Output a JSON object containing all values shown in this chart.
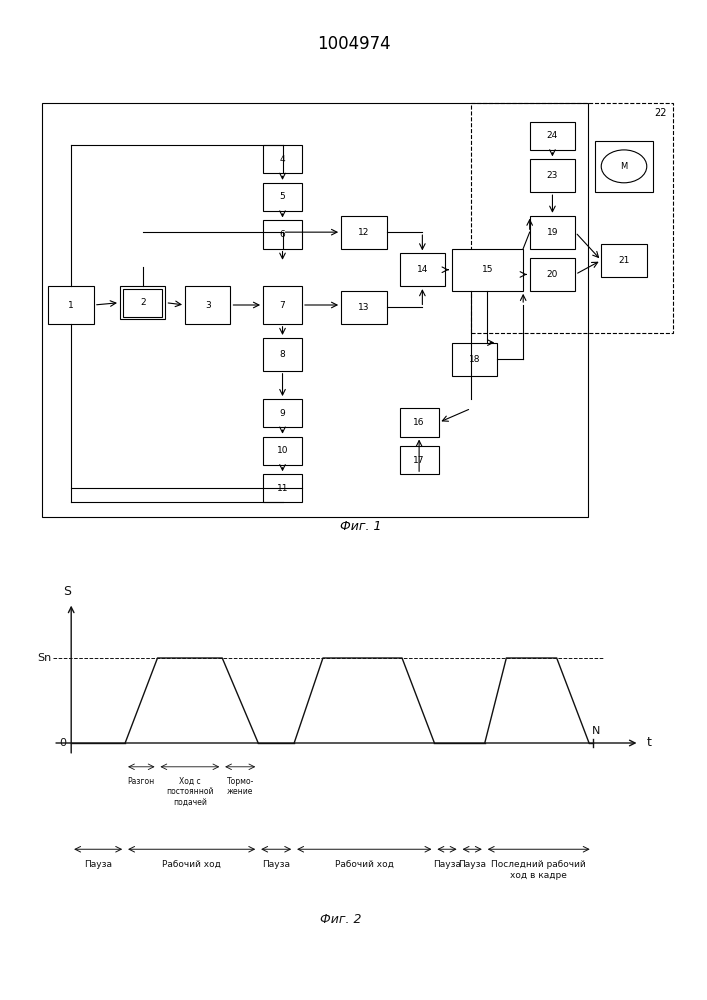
{
  "title": "1004974",
  "fig1_caption": "Фиг. 1",
  "fig2_caption": "Фиг. 2",
  "bg_color": "#ffffff",
  "line_color": "#000000",
  "waveform": {
    "Sn_label": "Sn",
    "S_label": "S",
    "t_label": "t",
    "N_label": "N",
    "zero_label": "0"
  }
}
